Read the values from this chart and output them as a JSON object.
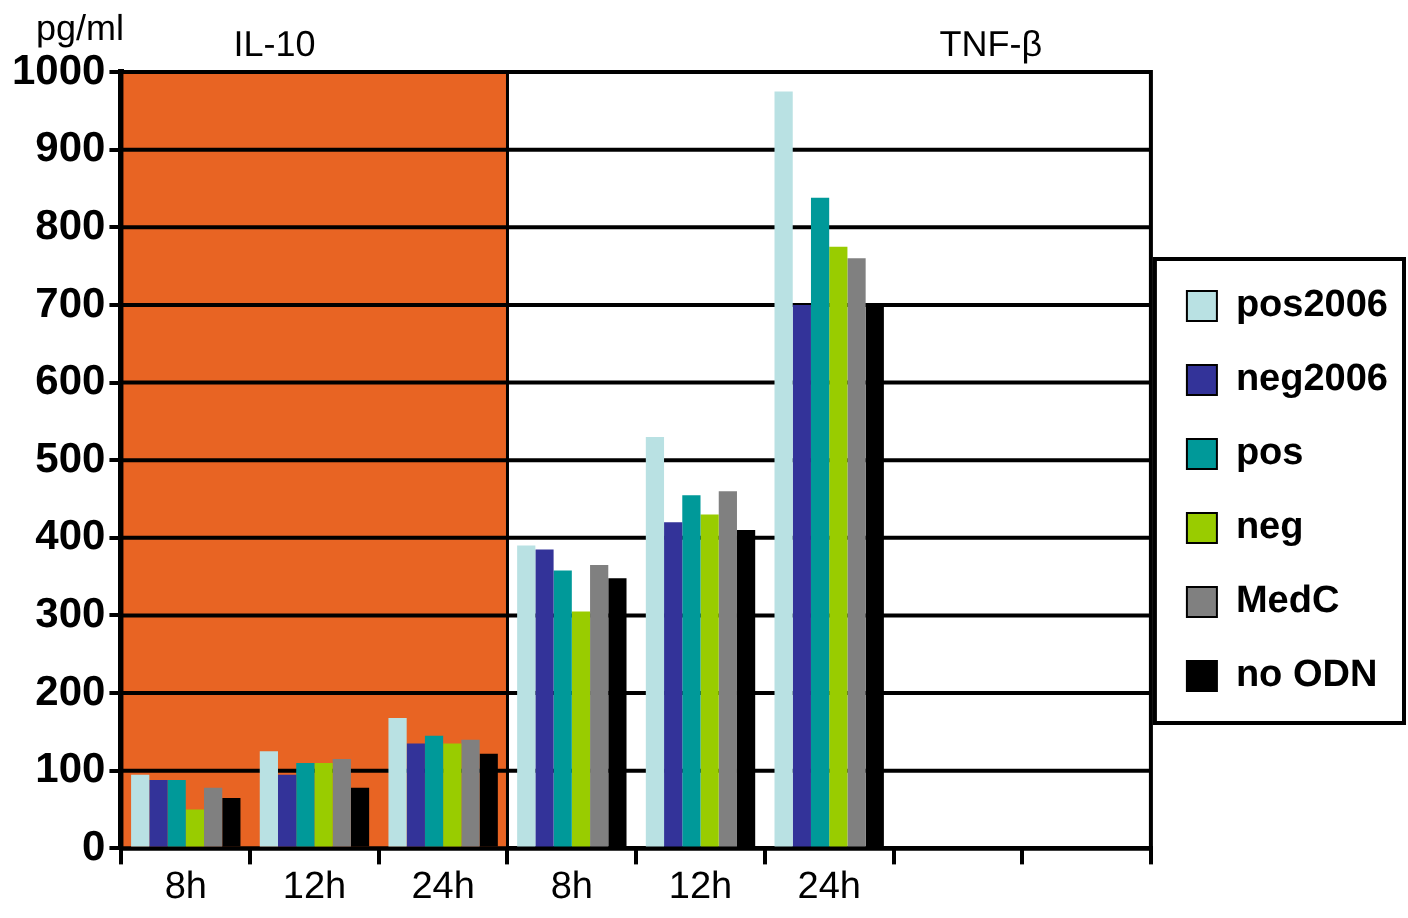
{
  "chart_data": {
    "type": "bar",
    "ylabel": "pg/ml",
    "annotations": [
      "TNF-β"
    ],
    "categories": [
      "8h",
      "12h",
      "24h",
      "8h",
      "12h",
      "24h",
      null,
      null
    ],
    "series": [
      {
        "name": "pos2006",
        "color": "#b9e1e3",
        "values": [
          95,
          125,
          168,
          390,
          530,
          975,
          null,
          null
        ]
      },
      {
        "name": "neg2006",
        "color": "#333399",
        "values": [
          88,
          95,
          135,
          385,
          420,
          700,
          null,
          null
        ]
      },
      {
        "name": "pos",
        "color": "#009999",
        "values": [
          88,
          110,
          145,
          358,
          455,
          838,
          null,
          null
        ]
      },
      {
        "name": "neg",
        "color": "#99cc00",
        "values": [
          50,
          110,
          135,
          305,
          430,
          775,
          null,
          null
        ]
      },
      {
        "name": "MedC",
        "color": "#808080",
        "values": [
          78,
          115,
          140,
          365,
          460,
          760,
          null,
          null
        ]
      },
      {
        "name": "no ODN",
        "color": "#000000",
        "values": [
          65,
          78,
          122,
          348,
          410,
          700,
          null,
          null
        ]
      }
    ],
    "bands": [
      {
        "axis": "x",
        "from": "8h",
        "to": "24h",
        "label": "IL-10",
        "color": "#e86423"
      }
    ],
    "ylim": [
      0,
      1000
    ],
    "yticks": [
      0,
      100,
      200,
      300,
      400,
      500,
      600,
      700,
      800,
      900,
      1000
    ],
    "grid": "y",
    "legend": "right"
  }
}
